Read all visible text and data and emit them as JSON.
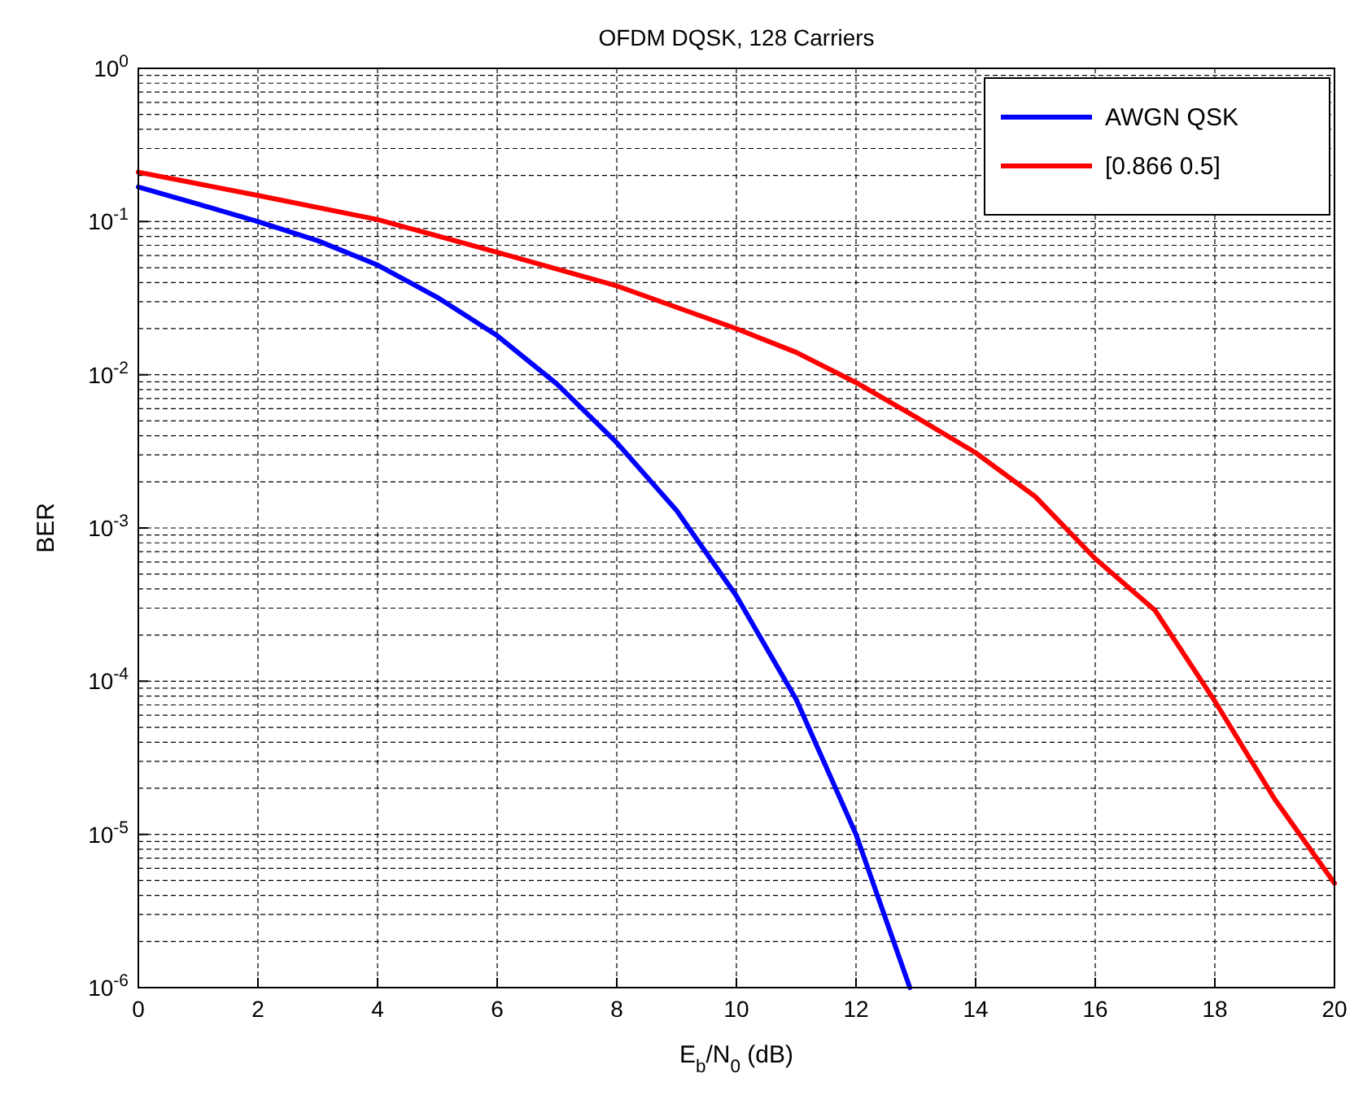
{
  "chart_data": {
    "type": "line",
    "title": "OFDM DQSK, 128 Carriers",
    "xlabel": "E$_{b}$/N$_{0}$ (dB)",
    "ylabel": "BER",
    "log": "y",
    "grid": true,
    "legend": "top right",
    "line_style": "solid",
    "marker": "none",
    "xlim": [
      0,
      20
    ],
    "xticks": [
      0,
      2,
      4,
      6,
      8,
      10,
      12,
      14,
      16,
      18,
      20
    ],
    "ylim": [
      1e-06,
      1
    ],
    "yticks": [
      {
        "value": 1e-06,
        "label": "10$^{-6}$"
      },
      {
        "value": 1e-05,
        "label": "10$^{-5}$"
      },
      {
        "value": 0.0001,
        "label": "10$^{-4}$"
      },
      {
        "value": 0.001,
        "label": "10$^{-3}$"
      },
      {
        "value": 0.01,
        "label": "10$^{-2}$"
      },
      {
        "value": 0.1,
        "label": "10$^{-1}$"
      },
      {
        "value": 1,
        "label": "10$^{0}$"
      }
    ],
    "series": [
      {
        "name": "AWGN QSK",
        "color": "#0000ff",
        "x": [
          0,
          1,
          2,
          3,
          4,
          5,
          6,
          7,
          8,
          9,
          10,
          11,
          12,
          12.9
        ],
        "values": [
          0.168,
          0.13,
          0.1,
          0.075,
          0.052,
          0.032,
          0.018,
          0.0087,
          0.0036,
          0.0013,
          0.00036,
          7.6e-05,
          1e-05,
          1e-06
        ]
      },
      {
        "name": "[0.866 0.5]",
        "color": "#ff0000",
        "x": [
          0,
          2,
          4,
          6,
          8,
          10,
          11,
          12,
          13,
          14,
          15,
          16,
          17,
          18,
          19,
          20
        ],
        "values": [
          0.21,
          0.148,
          0.103,
          0.063,
          0.038,
          0.02,
          0.014,
          0.0089,
          0.0053,
          0.0031,
          0.0016,
          0.00063,
          0.00029,
          7.4e-05,
          1.7e-05,
          4.8e-06
        ]
      }
    ]
  }
}
